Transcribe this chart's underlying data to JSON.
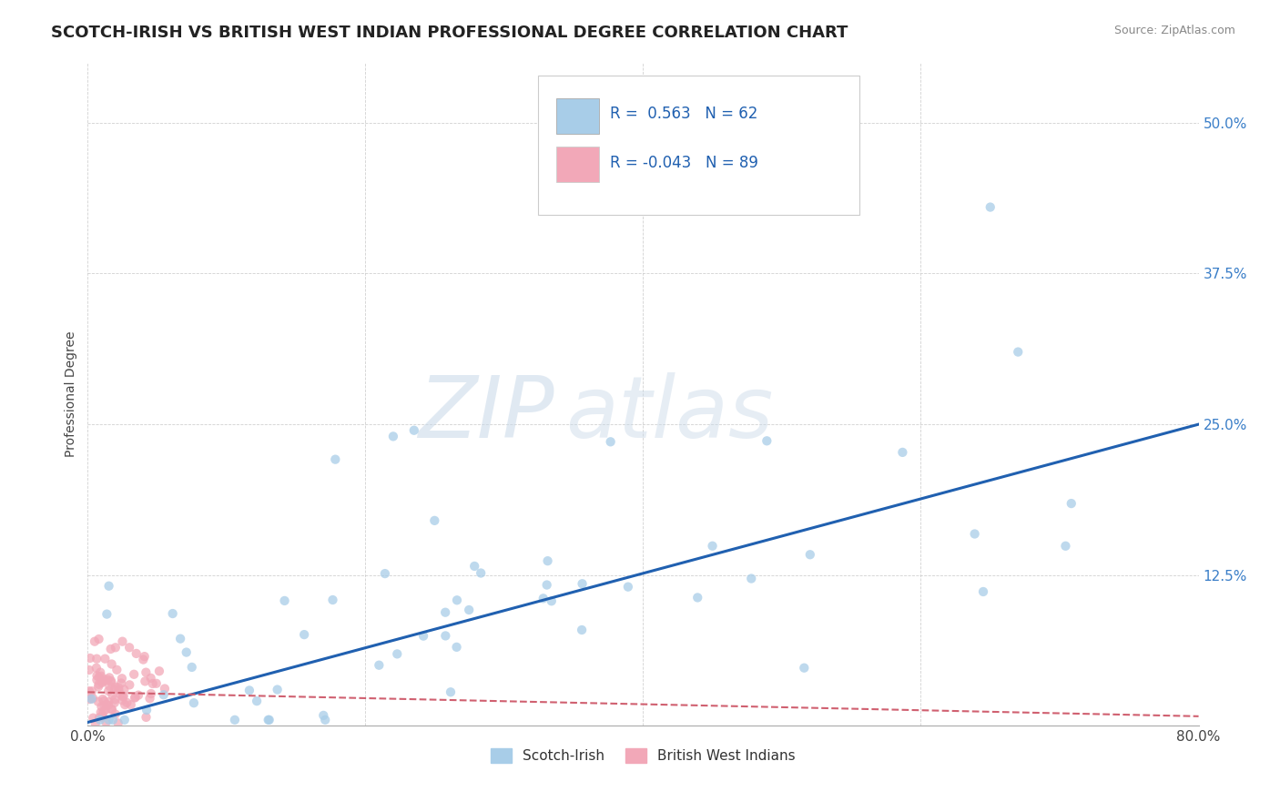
{
  "title": "SCOTCH-IRISH VS BRITISH WEST INDIAN PROFESSIONAL DEGREE CORRELATION CHART",
  "source": "Source: ZipAtlas.com",
  "ylabel": "Professional Degree",
  "xlim": [
    0.0,
    0.8
  ],
  "ylim": [
    0.0,
    0.55
  ],
  "xticks": [
    0.0,
    0.2,
    0.4,
    0.6,
    0.8
  ],
  "xticklabels": [
    "0.0%",
    "",
    "",
    "",
    "80.0%"
  ],
  "yticks": [
    0.0,
    0.125,
    0.25,
    0.375,
    0.5
  ],
  "yticklabels": [
    "",
    "12.5%",
    "25.0%",
    "37.5%",
    "50.0%"
  ],
  "watermark": "ZIPatlas",
  "r_scotch_irish": 0.563,
  "n_scotch_irish": 62,
  "r_bwi": -0.043,
  "n_bwi": 89,
  "blue_color": "#a8cde8",
  "pink_color": "#f2a8b8",
  "blue_line_color": "#2060b0",
  "pink_line_color": "#d06070",
  "title_fontsize": 13,
  "tick_fontsize": 11,
  "ylabel_fontsize": 10,
  "source_fontsize": 9,
  "legend_fontsize": 11
}
